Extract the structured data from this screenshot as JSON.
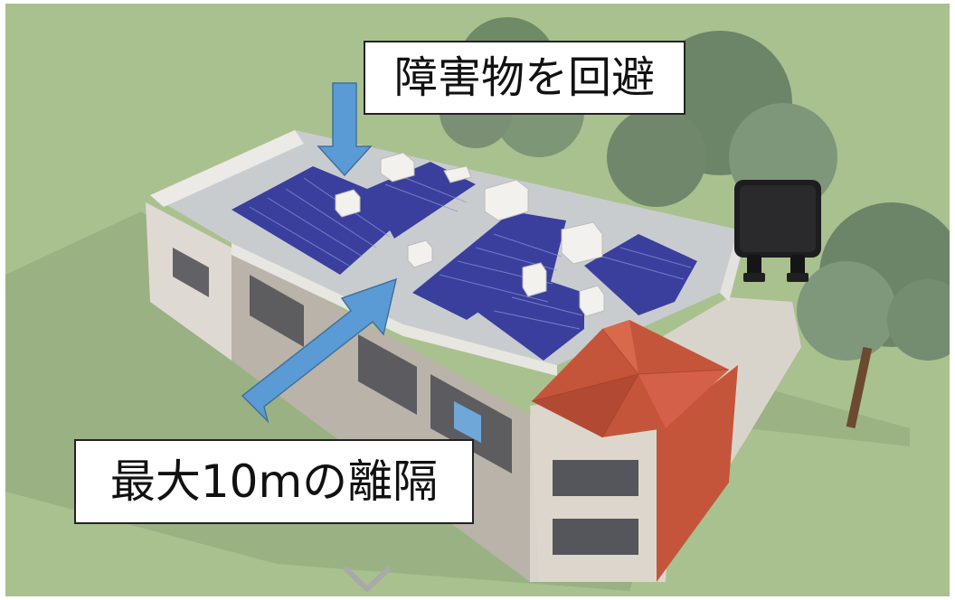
{
  "callouts": {
    "top": "障害物を回避",
    "bottom": "最大10mの離隔"
  },
  "icons": {
    "arrow_top": "down-arrow-icon",
    "arrow_bottom": "diagonal-arrow-icon",
    "device": "junction-box-icon",
    "scroll": "chevron-down-icon"
  },
  "colors": {
    "ground": "#a9c18e",
    "arrow": "#5b9bd5",
    "panel": "#3a3f9e",
    "roof_tile": "#c4553b",
    "roof_deck": "#c9cccf"
  }
}
